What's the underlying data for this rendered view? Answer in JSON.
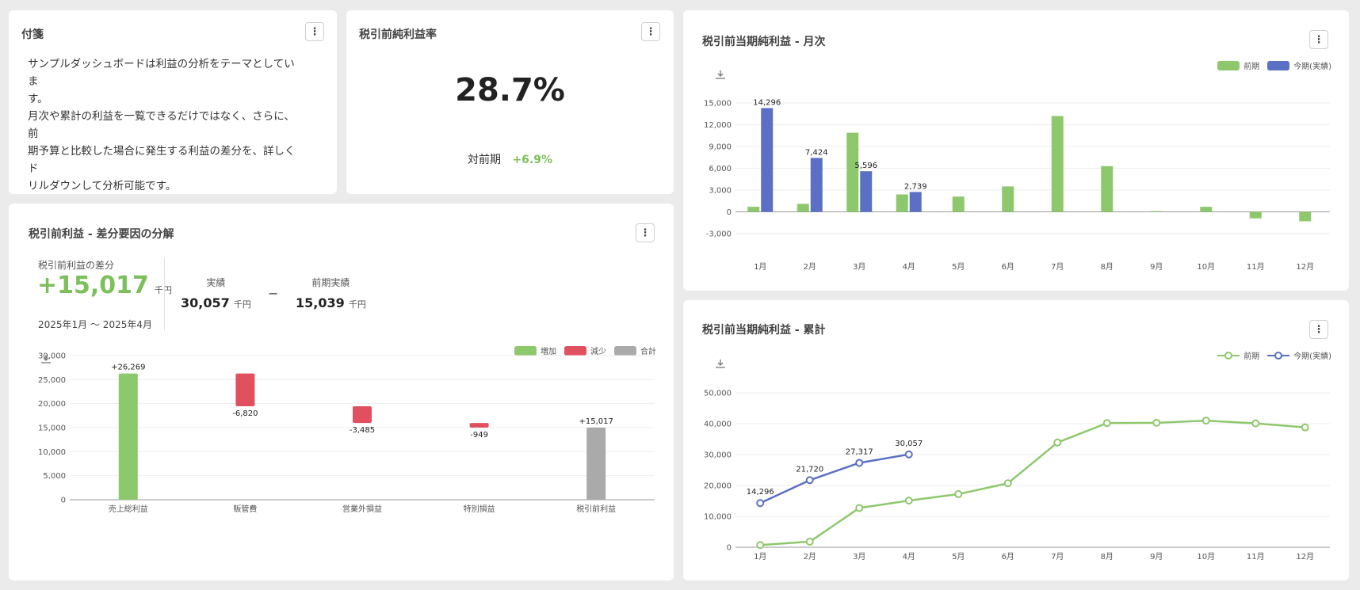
{
  "colors": {
    "prev": "#8ec86d",
    "curr": "#5b70c4",
    "increase": "#8ec86d",
    "decrease": "#e0505f",
    "total": "#aaaaaa",
    "positive_text": "#7dbf5b"
  },
  "note_card": {
    "title": "付箋",
    "lines": [
      "サンプルダッシュボードは利益の分析をテーマとしていま",
      "す。",
      "月次や累計の利益を一覧できるだけではなく、さらに、前",
      "期予算と比較した場合に発生する利益の差分を、詳しくド",
      "リルダウンして分析可能です。"
    ]
  },
  "kpi_card": {
    "title": "税引前純利益率",
    "value": "28.7%",
    "compare_label": "対前期",
    "compare_value": "+6.9%"
  },
  "waterfall_card": {
    "title": "税引前利益 - 差分要因の分解",
    "diff_label": "税引前利益の差分",
    "diff_value": "+15,017",
    "diff_unit": "千円",
    "period": "2025年1月 〜 2025年4月",
    "actual_label": "実績",
    "actual_value": "30,057",
    "actual_unit": "千円",
    "minus_sign": "−",
    "prev_label": "前期実績",
    "prev_value": "15,039",
    "prev_unit": "千円",
    "legend": [
      "増加",
      "減少",
      "合計"
    ]
  },
  "monthly_card": {
    "title": "税引前当期純利益 - 月次",
    "legend": [
      "前期",
      "今期(実績)"
    ]
  },
  "cumulative_card": {
    "title": "税引前当期純利益 - 累計",
    "legend": [
      "前期",
      "今期(実績)"
    ]
  },
  "chart_data": [
    {
      "id": "waterfall",
      "type": "bar",
      "categories": [
        "売上総利益",
        "販管費",
        "営業外損益",
        "特別損益",
        "税引前利益"
      ],
      "deltas": [
        26269,
        -6820,
        -3485,
        -949,
        15017
      ],
      "kinds": [
        "increase",
        "decrease",
        "decrease",
        "decrease",
        "total"
      ],
      "labels": [
        "+26,269",
        "-6,820",
        "-3,485",
        "-949",
        "+15,017"
      ],
      "yticks": [
        "30,000",
        "25,000",
        "20,000",
        "15,000",
        "10,000",
        "5,000",
        "0"
      ],
      "ylim": [
        0,
        30000
      ]
    },
    {
      "id": "monthly",
      "type": "bar",
      "categories": [
        "1月",
        "2月",
        "3月",
        "4月",
        "5月",
        "6月",
        "7月",
        "8月",
        "9月",
        "10月",
        "11月",
        "12月"
      ],
      "series": [
        {
          "name": "前期",
          "values": [
            700,
            1100,
            10900,
            2400,
            2100,
            3500,
            13200,
            6300,
            100,
            700,
            -900,
            -1300
          ]
        },
        {
          "name": "今期(実績)",
          "values": [
            14296,
            7424,
            5596,
            2739,
            null,
            null,
            null,
            null,
            null,
            null,
            null,
            null
          ]
        }
      ],
      "data_labels": [
        "14,296",
        "7,424",
        "5,596",
        "2,739"
      ],
      "yticks": [
        "15,000",
        "12,000",
        "9,000",
        "6,000",
        "3,000",
        "0",
        "-3,000"
      ],
      "ylim": [
        -3000,
        15000
      ]
    },
    {
      "id": "cumulative",
      "type": "line",
      "categories": [
        "1月",
        "2月",
        "3月",
        "4月",
        "5月",
        "6月",
        "7月",
        "8月",
        "9月",
        "10月",
        "11月",
        "12月"
      ],
      "series": [
        {
          "name": "前期",
          "values": [
            700,
            1800,
            12700,
            15100,
            17200,
            20700,
            33900,
            40200,
            40300,
            41000,
            40100,
            38800
          ]
        },
        {
          "name": "今期(実績)",
          "values": [
            14296,
            21720,
            27317,
            30057,
            null,
            null,
            null,
            null,
            null,
            null,
            null,
            null
          ]
        }
      ],
      "data_labels": [
        "14,296",
        "21,720",
        "27,317",
        "30,057"
      ],
      "yticks": [
        "50,000",
        "40,000",
        "30,000",
        "20,000",
        "10,000",
        "0"
      ],
      "ylim": [
        0,
        50000
      ]
    }
  ]
}
